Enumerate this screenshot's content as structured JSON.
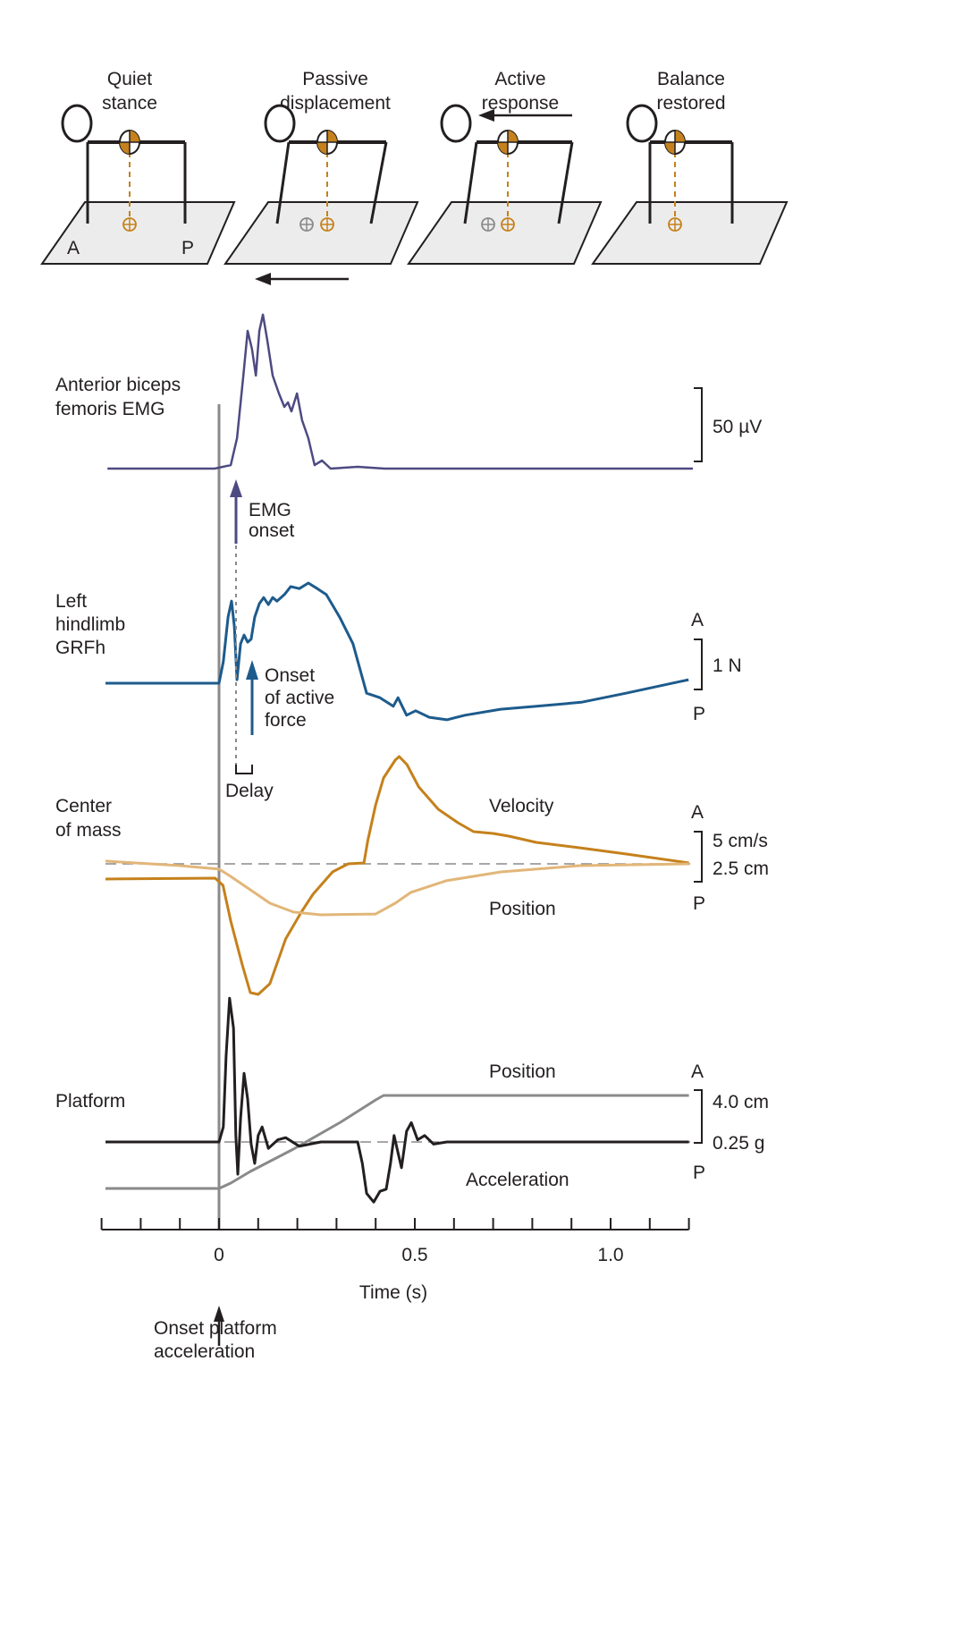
{
  "stages": [
    {
      "line1": "Quiet",
      "line2": "stance"
    },
    {
      "line1": "Passive",
      "line2": "displacement"
    },
    {
      "line1": "Active",
      "line2": "response"
    },
    {
      "line1": "Balance",
      "line2": "restored"
    }
  ],
  "platform_labels": {
    "anterior": "A",
    "posterior": "P"
  },
  "colors": {
    "emg": "#4d4a82",
    "grf": "#1d5b8c",
    "com_velocity": "#c5811c",
    "com_position": "#e2b679",
    "platform_acceleration": "#231f20",
    "platform_position": "#8a8a8a",
    "com_marker": "#c5811c",
    "platform_surface": "#ececec"
  },
  "row_labels": {
    "emg": [
      "Anterior biceps",
      "femoris EMG"
    ],
    "grf": [
      "Left",
      "hindlimb",
      "GRFh"
    ],
    "com": [
      "Center",
      "of mass"
    ],
    "platform": [
      "Platform"
    ]
  },
  "scale_bars": {
    "emg": "50 µV",
    "grf": "1 N",
    "com_velocity": "5 cm/s",
    "com_position": "2.5 cm",
    "platform_position": "4.0 cm",
    "platform_acceleration": "0.25 g",
    "a": "A",
    "p": "P"
  },
  "annotations": {
    "emg_onset": [
      "EMG",
      "onset"
    ],
    "active_force": [
      "Onset",
      "of active",
      "force"
    ],
    "delay": "Delay",
    "platform_onset": [
      "Onset platform",
      "acceleration"
    ]
  },
  "trace_labels": {
    "com_velocity": "Velocity",
    "com_position": "Position",
    "platform_position": "Position",
    "platform_acceleration": "Acceleration"
  },
  "chart_data": {
    "type": "line",
    "xlabel": "Time (s)",
    "xlim": [
      -0.3,
      1.2
    ],
    "xticks_minor_step": 0.1,
    "xtick_labels": [
      "0",
      "0.5",
      "1.0"
    ],
    "xtick_values": [
      0,
      0.5,
      1.0
    ],
    "series": [
      {
        "name": "Anterior biceps femoris EMG",
        "unit": "µV",
        "color_key": "emg",
        "points": [
          [
            -0.285,
            0
          ],
          [
            -0.011,
            0
          ],
          [
            0.03,
            2.4
          ],
          [
            0.046,
            20.7
          ],
          [
            0.062,
            63.4
          ],
          [
            0.073,
            93.9
          ],
          [
            0.084,
            81.7
          ],
          [
            0.094,
            63.4
          ],
          [
            0.103,
            93.9
          ],
          [
            0.112,
            105
          ],
          [
            0.123,
            87.8
          ],
          [
            0.137,
            63.4
          ],
          [
            0.153,
            51.2
          ],
          [
            0.167,
            42.1
          ],
          [
            0.176,
            45.1
          ],
          [
            0.185,
            39
          ],
          [
            0.199,
            51.2
          ],
          [
            0.212,
            32.9
          ],
          [
            0.228,
            20.7
          ],
          [
            0.244,
            2.4
          ],
          [
            0.263,
            5.5
          ],
          [
            0.285,
            0
          ],
          [
            0.354,
            1.2
          ],
          [
            0.422,
            0
          ],
          [
            1.21,
            0
          ]
        ]
      },
      {
        "name": "Left hindlimb GRFh",
        "unit": "N",
        "color_key": "grf",
        "points": [
          [
            -0.29,
            0
          ],
          [
            0,
            0
          ],
          [
            0.011,
            0.43
          ],
          [
            0.023,
            1.32
          ],
          [
            0.032,
            1.64
          ],
          [
            0.039,
            1.14
          ],
          [
            0.046,
            0.07
          ],
          [
            0.055,
            0.79
          ],
          [
            0.064,
            0.96
          ],
          [
            0.073,
            0.82
          ],
          [
            0.082,
            0.88
          ],
          [
            0.091,
            1.32
          ],
          [
            0.103,
            1.59
          ],
          [
            0.114,
            1.71
          ],
          [
            0.126,
            1.57
          ],
          [
            0.137,
            1.71
          ],
          [
            0.148,
            1.64
          ],
          [
            0.167,
            1.77
          ],
          [
            0.183,
            1.93
          ],
          [
            0.205,
            1.89
          ],
          [
            0.228,
            2.0
          ],
          [
            0.251,
            1.89
          ],
          [
            0.274,
            1.77
          ],
          [
            0.308,
            1.32
          ],
          [
            0.342,
            0.79
          ],
          [
            0.377,
            -0.2
          ],
          [
            0.411,
            -0.29
          ],
          [
            0.445,
            -0.46
          ],
          [
            0.457,
            -0.29
          ],
          [
            0.479,
            -0.64
          ],
          [
            0.502,
            -0.55
          ],
          [
            0.537,
            -0.68
          ],
          [
            0.582,
            -0.73
          ],
          [
            0.628,
            -0.64
          ],
          [
            0.719,
            -0.52
          ],
          [
            0.811,
            -0.46
          ],
          [
            0.925,
            -0.38
          ],
          [
            1.039,
            -0.2
          ],
          [
            1.199,
            0.07
          ]
        ]
      },
      {
        "name": "Velocity",
        "unit": "cm/s",
        "color_key": "com_velocity",
        "points": [
          [
            -0.29,
            -1.55
          ],
          [
            -0.01,
            -1.45
          ],
          [
            0.01,
            -2.18
          ],
          [
            0.03,
            -5.82
          ],
          [
            0.06,
            -10.36
          ],
          [
            0.08,
            -13.09
          ],
          [
            0.1,
            -13.27
          ],
          [
            0.13,
            -12.18
          ],
          [
            0.15,
            -9.91
          ],
          [
            0.17,
            -7.64
          ],
          [
            0.21,
            -4.91
          ],
          [
            0.24,
            -3.09
          ],
          [
            0.29,
            -0.82
          ],
          [
            0.33,
            0
          ],
          [
            0.37,
            0.09
          ],
          [
            0.38,
            2.36
          ],
          [
            0.4,
            6.0
          ],
          [
            0.42,
            8.73
          ],
          [
            0.45,
            10.55
          ],
          [
            0.46,
            10.91
          ],
          [
            0.48,
            10.09
          ],
          [
            0.51,
            7.82
          ],
          [
            0.56,
            5.55
          ],
          [
            0.61,
            4.18
          ],
          [
            0.65,
            3.27
          ],
          [
            0.7,
            3.09
          ],
          [
            0.74,
            2.82
          ],
          [
            0.81,
            2.18
          ],
          [
            0.92,
            1.64
          ],
          [
            1.04,
            1.0
          ],
          [
            1.2,
            0.09
          ]
        ]
      },
      {
        "name": "Position",
        "unit": "cm",
        "color_key": "com_position",
        "points": [
          [
            -0.29,
            0.14
          ],
          [
            -0.1,
            -0.09
          ],
          [
            0,
            -0.27
          ],
          [
            0.03,
            -0.64
          ],
          [
            0.08,
            -1.32
          ],
          [
            0.13,
            -2.0
          ],
          [
            0.19,
            -2.45
          ],
          [
            0.26,
            -2.59
          ],
          [
            0.4,
            -2.55
          ],
          [
            0.45,
            -2.0
          ],
          [
            0.49,
            -1.45
          ],
          [
            0.58,
            -0.86
          ],
          [
            0.72,
            -0.41
          ],
          [
            0.92,
            -0.09
          ],
          [
            1.2,
            0
          ]
        ]
      },
      {
        "name": "Position",
        "unit": "cm",
        "color_key": "platform_position",
        "points": [
          [
            -0.29,
            -3.47
          ],
          [
            0,
            -3.47
          ],
          [
            0.03,
            -3.07
          ],
          [
            0.08,
            -2.2
          ],
          [
            0.19,
            -0.53
          ],
          [
            0.31,
            1.47
          ],
          [
            0.4,
            3.13
          ],
          [
            0.42,
            3.47
          ],
          [
            1.2,
            3.47
          ]
        ]
      },
      {
        "name": "Acceleration",
        "unit": "g",
        "color_key": "platform_acceleration",
        "points": [
          [
            -0.29,
            0
          ],
          [
            0,
            0
          ],
          [
            0.011,
            0.07
          ],
          [
            0.018,
            0.4
          ],
          [
            0.027,
            0.67
          ],
          [
            0.037,
            0.53
          ],
          [
            0.043,
            0.03
          ],
          [
            0.048,
            -0.15
          ],
          [
            0.055,
            0.11
          ],
          [
            0.064,
            0.32
          ],
          [
            0.073,
            0.2
          ],
          [
            0.082,
            -0.01
          ],
          [
            0.091,
            -0.1
          ],
          [
            0.1,
            0.03
          ],
          [
            0.11,
            0.07
          ],
          [
            0.126,
            -0.03
          ],
          [
            0.15,
            0.01
          ],
          [
            0.17,
            0.02
          ],
          [
            0.205,
            -0.02
          ],
          [
            0.26,
            0
          ],
          [
            0.354,
            0
          ],
          [
            0.366,
            -0.1
          ],
          [
            0.377,
            -0.24
          ],
          [
            0.395,
            -0.28
          ],
          [
            0.411,
            -0.23
          ],
          [
            0.427,
            -0.22
          ],
          [
            0.438,
            -0.1
          ],
          [
            0.447,
            0.03
          ],
          [
            0.457,
            -0.05
          ],
          [
            0.466,
            -0.12
          ],
          [
            0.479,
            0.05
          ],
          [
            0.491,
            0.09
          ],
          [
            0.507,
            0.01
          ],
          [
            0.525,
            0.03
          ],
          [
            0.548,
            -0.01
          ],
          [
            0.582,
            0
          ],
          [
            1.2,
            0
          ]
        ]
      }
    ]
  }
}
